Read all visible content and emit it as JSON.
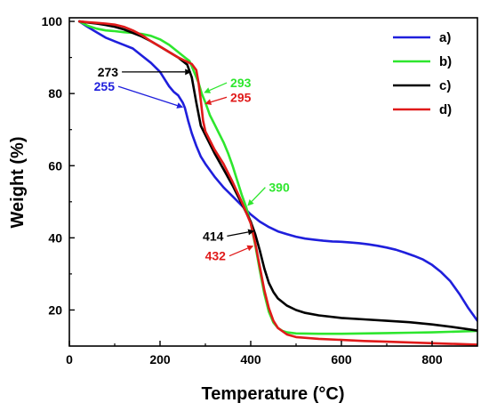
{
  "chart_data": {
    "type": "line",
    "title": "",
    "xlabel": "Temperature (°C)",
    "ylabel": "Weight (%)",
    "xlim": [
      0,
      900
    ],
    "ylim": [
      10,
      101
    ],
    "xticks": [
      0,
      200,
      400,
      600,
      800
    ],
    "yticks": [
      20,
      40,
      60,
      80,
      100
    ],
    "x_tick_labels": [
      "0",
      "200",
      "400",
      "600",
      "800"
    ],
    "y_tick_labels": [
      "20",
      "40",
      "60",
      "80",
      "100"
    ],
    "grid": false,
    "legend_position": "top-right",
    "series": [
      {
        "name": "a)",
        "color": "#1f1fdc",
        "x": [
          22,
          40,
          60,
          80,
          100,
          120,
          140,
          160,
          180,
          200,
          210,
          220,
          230,
          240,
          250,
          255,
          262,
          270,
          280,
          290,
          300,
          320,
          340,
          360,
          380,
          400,
          420,
          440,
          460,
          480,
          500,
          520,
          540,
          560,
          580,
          600,
          620,
          640,
          660,
          680,
          700,
          720,
          740,
          760,
          780,
          800,
          820,
          840,
          860,
          880,
          900
        ],
        "y": [
          100,
          98.5,
          97,
          95.5,
          94.5,
          93.5,
          92.5,
          90.5,
          88.5,
          86,
          84,
          82,
          80.5,
          79.5,
          77.5,
          76,
          72.5,
          69,
          65.5,
          62.5,
          60.5,
          57,
          54,
          51.5,
          49,
          46.5,
          44.5,
          43,
          41.8,
          41,
          40.3,
          39.8,
          39.5,
          39.2,
          39,
          38.9,
          38.7,
          38.5,
          38.2,
          37.8,
          37.3,
          36.7,
          35.9,
          35,
          34,
          32.5,
          30.5,
          28,
          24.5,
          20.5,
          17
        ]
      },
      {
        "name": "b)",
        "color": "#2ee62e",
        "x": [
          22,
          40,
          60,
          80,
          100,
          120,
          140,
          160,
          180,
          200,
          220,
          240,
          255,
          265,
          275,
          285,
          292,
          300,
          310,
          320,
          330,
          340,
          350,
          360,
          370,
          380,
          390,
          400,
          410,
          420,
          430,
          440,
          450,
          460,
          470,
          480,
          500,
          550,
          600,
          650,
          700,
          750,
          800,
          850,
          900
        ],
        "y": [
          100,
          98.8,
          98,
          97.5,
          97.3,
          97,
          96.8,
          96.5,
          96,
          95,
          93.5,
          91.5,
          90,
          89,
          86,
          83,
          80,
          77.5,
          74,
          71.5,
          69,
          66.5,
          63.5,
          60,
          56,
          52,
          48.5,
          44,
          38,
          31,
          24.5,
          19.5,
          16.5,
          15,
          14.2,
          13.8,
          13.5,
          13.4,
          13.4,
          13.5,
          13.6,
          13.7,
          13.8,
          14,
          14.2
        ]
      },
      {
        "name": "c)",
        "color": "#000000",
        "x": [
          22,
          40,
          60,
          80,
          100,
          120,
          140,
          160,
          180,
          200,
          220,
          240,
          260,
          270,
          280,
          290,
          300,
          320,
          340,
          360,
          380,
          400,
          410,
          420,
          430,
          440,
          450,
          460,
          480,
          500,
          520,
          550,
          600,
          650,
          700,
          750,
          800,
          850,
          900
        ],
        "y": [
          100,
          99.7,
          99.4,
          99,
          98.5,
          97.8,
          96.8,
          95.8,
          94.5,
          93,
          91.5,
          90,
          88,
          84.5,
          77.5,
          71,
          68.5,
          63.5,
          59,
          54.5,
          49.5,
          44.5,
          41,
          36.5,
          31.5,
          27.5,
          25,
          23.2,
          21.2,
          20,
          19.2,
          18.5,
          17.8,
          17.4,
          17,
          16.6,
          16,
          15.2,
          14.3
        ]
      },
      {
        "name": "d)",
        "color": "#e01a1a",
        "x": [
          22,
          40,
          60,
          80,
          100,
          120,
          140,
          160,
          180,
          200,
          220,
          240,
          260,
          270,
          280,
          285,
          290,
          295,
          300,
          320,
          340,
          360,
          380,
          400,
          410,
          420,
          430,
          440,
          450,
          460,
          480,
          500,
          550,
          600,
          650,
          700,
          750,
          800,
          850,
          900
        ],
        "y": [
          100,
          99.8,
          99.6,
          99.4,
          99.1,
          98.5,
          97.5,
          96.2,
          94.5,
          93,
          91.5,
          90,
          88.8,
          88.2,
          86.5,
          83,
          78,
          72.5,
          69.5,
          64.5,
          60.5,
          55.5,
          50,
          44,
          38.5,
          32,
          25.5,
          20.5,
          17,
          15,
          13.2,
          12.5,
          12,
          11.7,
          11.4,
          11.2,
          11,
          10.8,
          10.6,
          10.4
        ]
      }
    ],
    "annotations": [
      {
        "text": "255",
        "series": "a)",
        "color": "#1f1fdc",
        "x": 255,
        "y": 76,
        "text_x": 100,
        "text_y": 81,
        "text_anchor": "end"
      },
      {
        "text": "273",
        "series": "c)",
        "color": "#000000",
        "x": 273,
        "y": 86,
        "text_x": 108,
        "text_y": 85,
        "text_anchor": "end"
      },
      {
        "text": "293",
        "series": "b)",
        "color": "#2ee62e",
        "x": 293,
        "y": 80,
        "text_x": 355,
        "text_y": 82,
        "text_anchor": "start"
      },
      {
        "text": "295",
        "series": "d)",
        "color": "#e01a1a",
        "x": 295,
        "y": 77,
        "text_x": 355,
        "text_y": 78,
        "text_anchor": "start"
      },
      {
        "text": "390",
        "series": "b)",
        "color": "#2ee62e",
        "x": 390,
        "y": 48.5,
        "text_x": 440,
        "text_y": 53,
        "text_anchor": "start"
      },
      {
        "text": "414",
        "series": "c)",
        "color": "#000000",
        "x": 412,
        "y": 42,
        "text_x": 340,
        "text_y": 39.5,
        "text_anchor": "end"
      },
      {
        "text": "432",
        "series": "d)",
        "color": "#e01a1a",
        "x": 410,
        "y": 38,
        "text_x": 345,
        "text_y": 34,
        "text_anchor": "end"
      }
    ]
  }
}
